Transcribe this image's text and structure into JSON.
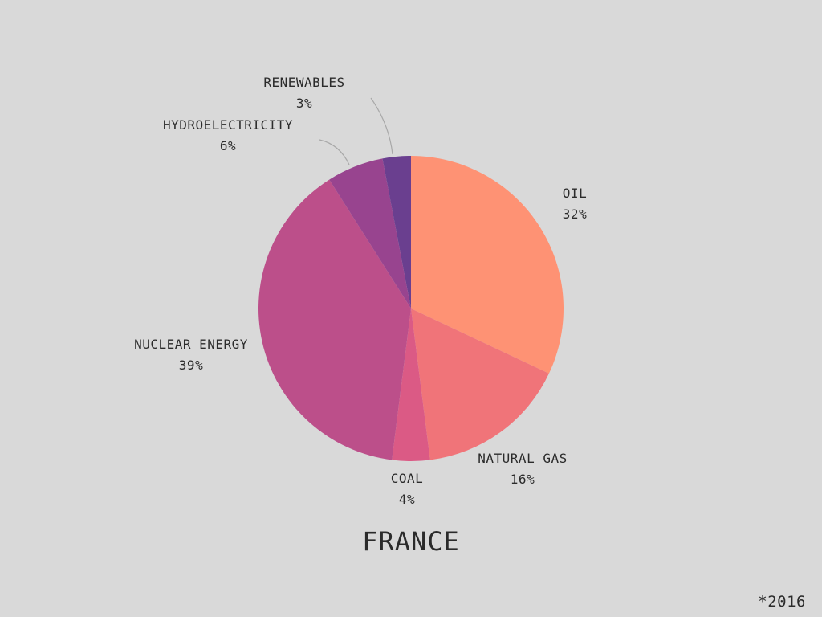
{
  "chart_data": {
    "type": "pie",
    "title": "FRANCE",
    "footnote": "*2016",
    "slices": [
      {
        "name": "OIL",
        "value": 32,
        "value_label": "32%",
        "color": "#fe9274"
      },
      {
        "name": "NATURAL GAS",
        "value": 16,
        "value_label": "16%",
        "color": "#f07479"
      },
      {
        "name": "COAL",
        "value": 4,
        "value_label": "4%",
        "color": "#db5a85"
      },
      {
        "name": "NUCLEAR ENERGY",
        "value": 39,
        "value_label": "39%",
        "color": "#bc4f8a"
      },
      {
        "name": "HYDROELECTRICITY",
        "value": 6,
        "value_label": "6%",
        "color": "#98448f"
      },
      {
        "name": "RENEWABLES",
        "value": 3,
        "value_label": "3%",
        "color": "#6a3f8f"
      }
    ]
  }
}
